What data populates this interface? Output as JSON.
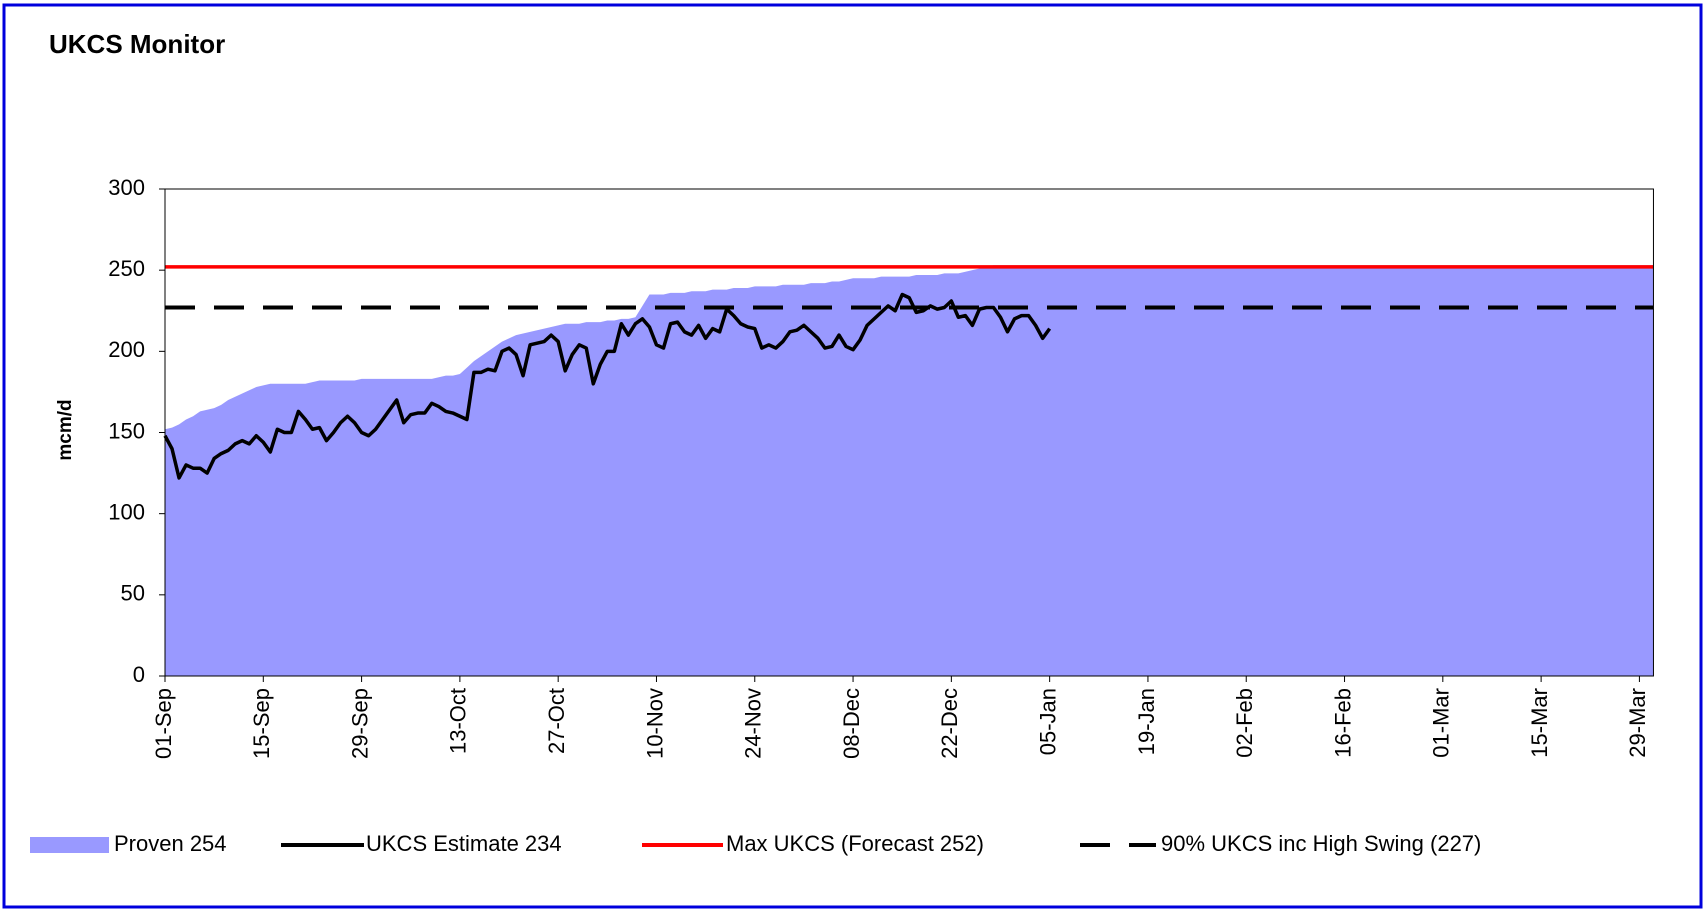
{
  "chart_data": {
    "type": "line",
    "title": "UKCS Monitor",
    "y_label": "mcm/d",
    "categories": [
      "01-Sep",
      null,
      null,
      null,
      null,
      null,
      null,
      null,
      null,
      null,
      null,
      null,
      null,
      null,
      "15-Sep",
      null,
      null,
      null,
      null,
      null,
      null,
      null,
      null,
      null,
      null,
      null,
      null,
      null,
      "29-Sep",
      null,
      null,
      null,
      null,
      null,
      null,
      null,
      null,
      null,
      null,
      null,
      null,
      null,
      "13-Oct",
      null,
      null,
      null,
      null,
      null,
      null,
      null,
      null,
      null,
      null,
      null,
      null,
      null,
      "27-Oct",
      null,
      null,
      null,
      null,
      null,
      null,
      null,
      null,
      null,
      null,
      null,
      null,
      null,
      "10-Nov",
      null,
      null,
      null,
      null,
      null,
      null,
      null,
      null,
      null,
      null,
      null,
      null,
      null,
      "24-Nov",
      null,
      null,
      null,
      null,
      null,
      null,
      null,
      null,
      null,
      null,
      null,
      null,
      null,
      "08-Dec",
      null,
      null,
      null,
      null,
      null,
      null,
      null,
      null,
      null,
      null,
      null,
      null,
      null,
      "22-Dec",
      null,
      null,
      null,
      null,
      null,
      null,
      null,
      null,
      null,
      null,
      null,
      null,
      null,
      "05-Jan",
      null,
      null,
      null,
      null,
      null,
      null,
      null,
      null,
      null,
      null,
      null,
      null,
      null,
      "19-Jan",
      null,
      null,
      null,
      null,
      null,
      null,
      null,
      null,
      null,
      null,
      null,
      null,
      null,
      "02-Feb",
      null,
      null,
      null,
      null,
      null,
      null,
      null,
      null,
      null,
      null,
      null,
      null,
      null,
      "16-Feb",
      null,
      null,
      null,
      null,
      null,
      null,
      null,
      null,
      null,
      null,
      null,
      null,
      null,
      "01-Mar",
      null,
      null,
      null,
      null,
      null,
      null,
      null,
      null,
      null,
      null,
      null,
      null,
      null,
      "15-Mar",
      null,
      null,
      null,
      null,
      null,
      null,
      null,
      null,
      null,
      null,
      null,
      null,
      null,
      "29-Mar",
      null,
      null
    ],
    "series": [
      {
        "name": "Proven 254",
        "kind": "area",
        "color": "#9999ff",
        "values": [
          152,
          153,
          155,
          158,
          160,
          163,
          164,
          165,
          167,
          170,
          172,
          174,
          176,
          178,
          179,
          180,
          180,
          180,
          180,
          180,
          180,
          181,
          182,
          182,
          182,
          182,
          182,
          182,
          183,
          183,
          183,
          183,
          183,
          183,
          183,
          183,
          183,
          183,
          183,
          184,
          185,
          185,
          186,
          190,
          194,
          197,
          200,
          203,
          206,
          208,
          210,
          211,
          212,
          213,
          214,
          215,
          216,
          217,
          217,
          217,
          218,
          218,
          218,
          219,
          219,
          220,
          220,
          221,
          228,
          235,
          235,
          235,
          236,
          236,
          236,
          237,
          237,
          237,
          238,
          238,
          238,
          239,
          239,
          239,
          240,
          240,
          240,
          240,
          241,
          241,
          241,
          241,
          242,
          242,
          242,
          243,
          243,
          244,
          245,
          245,
          245,
          245,
          246,
          246,
          246,
          246,
          246,
          247,
          247,
          247,
          247,
          248,
          248,
          248,
          249,
          250,
          251,
          252,
          253,
          253,
          253,
          253,
          253,
          253,
          253,
          253,
          253,
          253,
          253,
          253,
          253,
          253,
          253,
          253,
          253,
          253,
          253,
          253,
          253,
          253,
          253,
          253,
          253,
          253,
          253,
          253,
          253,
          253,
          253,
          253,
          253,
          253,
          253,
          253,
          253,
          253,
          253,
          253,
          253,
          253,
          253,
          253,
          253,
          253,
          253,
          253,
          253,
          253,
          253,
          253,
          253,
          253,
          253,
          253,
          253,
          253,
          253,
          253,
          253,
          253,
          253,
          253,
          253,
          253,
          253,
          253,
          253,
          253,
          253,
          253,
          253,
          253,
          253,
          253,
          253,
          253,
          253,
          253,
          253,
          253,
          253,
          253,
          253,
          253,
          253,
          253,
          253,
          253,
          253,
          253,
          253,
          253,
          253
        ]
      },
      {
        "name": "UKCS Estimate 234",
        "kind": "line",
        "color": "#000000",
        "values": [
          148,
          140,
          122,
          130,
          128,
          128,
          125,
          134,
          137,
          139,
          143,
          145,
          143,
          148,
          144,
          138,
          152,
          150,
          150,
          163,
          158,
          152,
          153,
          145,
          150,
          156,
          160,
          156,
          150,
          148,
          152,
          158,
          164,
          170,
          156,
          161,
          162,
          162,
          168,
          166,
          163,
          162,
          160,
          158,
          187,
          187,
          189,
          188,
          200,
          202,
          198,
          185,
          204,
          205,
          206,
          210,
          206,
          188,
          198,
          204,
          202,
          180,
          192,
          200,
          200,
          217,
          210,
          217,
          220,
          215,
          204,
          202,
          217,
          218,
          212,
          210,
          216,
          208,
          214,
          212,
          226,
          222,
          217,
          215,
          214,
          202,
          204,
          202,
          206,
          212,
          213,
          216,
          212,
          208,
          202,
          203,
          210,
          203,
          201,
          207,
          216,
          220,
          224,
          228,
          225,
          235,
          233,
          224,
          225,
          228,
          226,
          227,
          231,
          221,
          222,
          216,
          226,
          227,
          227,
          221,
          212,
          220,
          222,
          222,
          216,
          208,
          214,
          null,
          null,
          null,
          null,
          null,
          null,
          null,
          null,
          null,
          null,
          null,
          null,
          null,
          null,
          null,
          null,
          null,
          null,
          null,
          null,
          null,
          null,
          null,
          null,
          null,
          null,
          null,
          null,
          null,
          null,
          null,
          null,
          null,
          null,
          null,
          null,
          null,
          null,
          null,
          null,
          null,
          null,
          null,
          null,
          null,
          null,
          null,
          null,
          null,
          null,
          null,
          null,
          null,
          null,
          null,
          null,
          null,
          null,
          null,
          null,
          null,
          null,
          null,
          null,
          null,
          null,
          null,
          null,
          null,
          null,
          null,
          null,
          null,
          null,
          null,
          null,
          null,
          null,
          null,
          null,
          null,
          null,
          null,
          null,
          null,
          null
        ]
      }
    ],
    "reference_lines": [
      {
        "name": "Max UKCS (Forecast 252)",
        "value": 252,
        "color": "#ff0000",
        "dashed": false
      },
      {
        "name": "90% UKCS inc High Swing (227)",
        "value": 227,
        "color": "#000000",
        "dashed": true
      }
    ],
    "ylim": [
      0,
      300
    ],
    "yticks": [
      0,
      50,
      100,
      150,
      200,
      250,
      300
    ],
    "grid": false,
    "legend": "bottom"
  }
}
